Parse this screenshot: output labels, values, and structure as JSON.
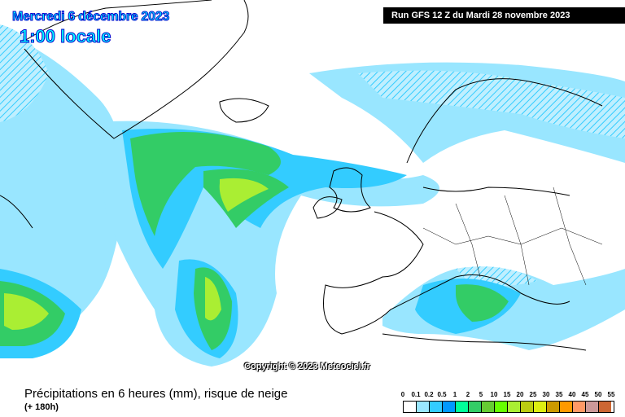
{
  "header": {
    "date": "Mercredi 6 décembre 2023",
    "time": "1:00 locale",
    "run": "Run GFS 12 Z du Mardi 28 novembre 2023"
  },
  "map": {
    "copyright": "Copyright © 2023 Meteociel.fr",
    "region": "North Atlantic / Europe"
  },
  "footer": {
    "parameter": "Précipitations en 6 heures (mm), risque de neige",
    "lead": "(+ 180h)"
  },
  "legend": {
    "labels": [
      "0",
      "0.1",
      "0.2",
      "0.5",
      "1",
      "2",
      "5",
      "10",
      "15",
      "20",
      "25",
      "30",
      "35",
      "40",
      "45",
      "50",
      "55"
    ],
    "colors": [
      "#ffffff",
      "#99e6ff",
      "#33ccff",
      "#0099ff",
      "#00ff99",
      "#33cc66",
      "#66cc33",
      "#66ff00",
      "#aaee33",
      "#bbcc11",
      "#ddee11",
      "#cc9900",
      "#ff9900",
      "#ff9966",
      "#cc9999",
      "#cc6633",
      "#cc3333"
    ]
  }
}
